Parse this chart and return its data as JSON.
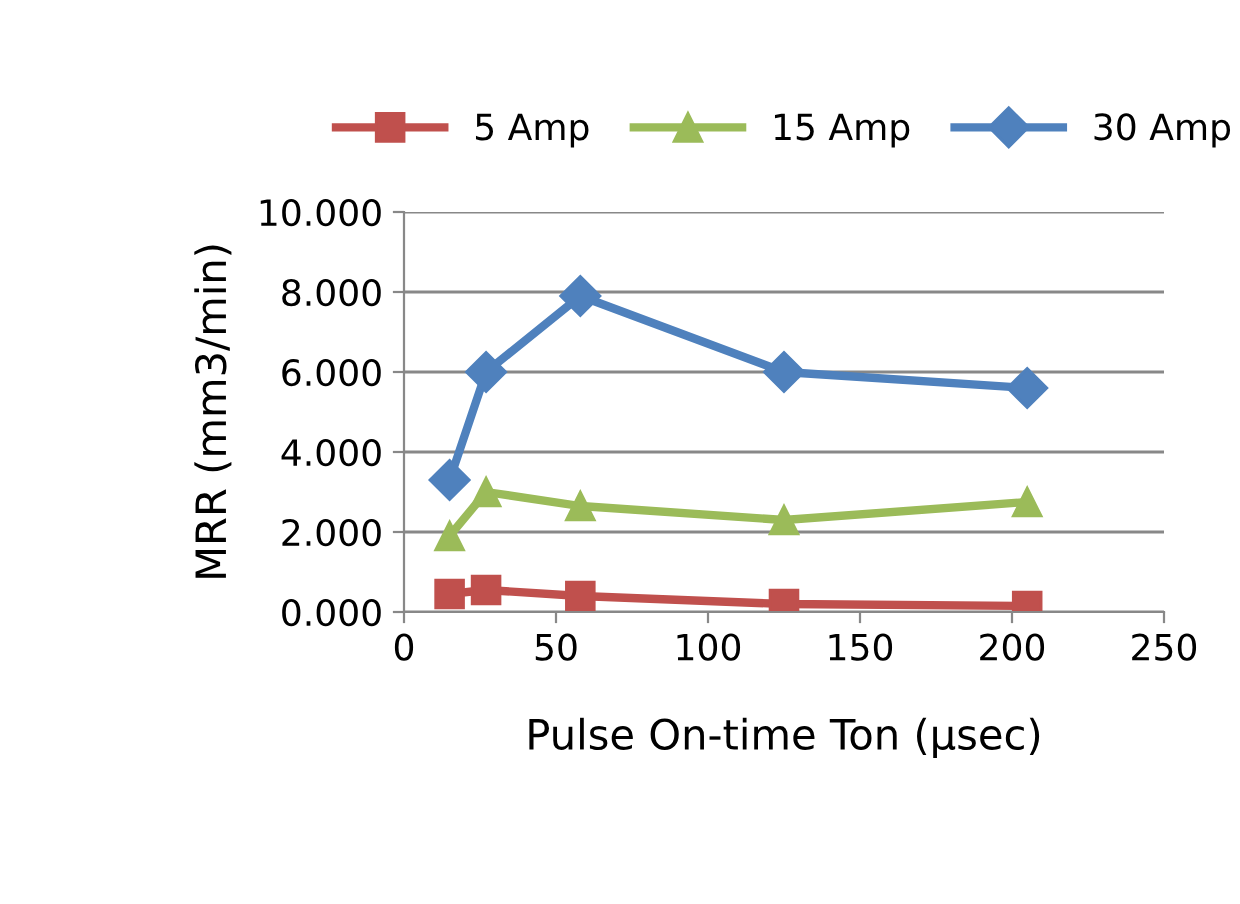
{
  "chart_data": {
    "type": "line",
    "xlabel": "Pulse On-time Ton (µsec)",
    "ylabel": "MRR (mm3/min)",
    "x": [
      15,
      27,
      58,
      125,
      205
    ],
    "series": [
      {
        "name": "5 Amp",
        "color": "#c0504d",
        "marker": "square",
        "values": [
          0.45,
          0.55,
          0.4,
          0.2,
          0.15
        ]
      },
      {
        "name": "15 Amp",
        "color": "#9bbb59",
        "marker": "triangle",
        "values": [
          1.9,
          3.0,
          2.65,
          2.3,
          2.75
        ]
      },
      {
        "name": "30 Amp",
        "color": "#4f81bd",
        "marker": "diamond",
        "values": [
          3.3,
          6.0,
          7.9,
          6.0,
          5.6
        ]
      }
    ],
    "xlim": [
      0,
      250
    ],
    "xticks": [
      0,
      50,
      100,
      150,
      200,
      250
    ],
    "ylim": [
      0,
      10
    ],
    "yticks": [
      {
        "value": 0,
        "label": "0.000"
      },
      {
        "value": 2,
        "label": "2.000"
      },
      {
        "value": 4,
        "label": "4.000"
      },
      {
        "value": 6,
        "label": "6.000"
      },
      {
        "value": 8,
        "label": "8.000"
      },
      {
        "value": 10,
        "label": "10.000"
      }
    ],
    "grid": "y",
    "legend": "top",
    "line_style": "solid"
  }
}
